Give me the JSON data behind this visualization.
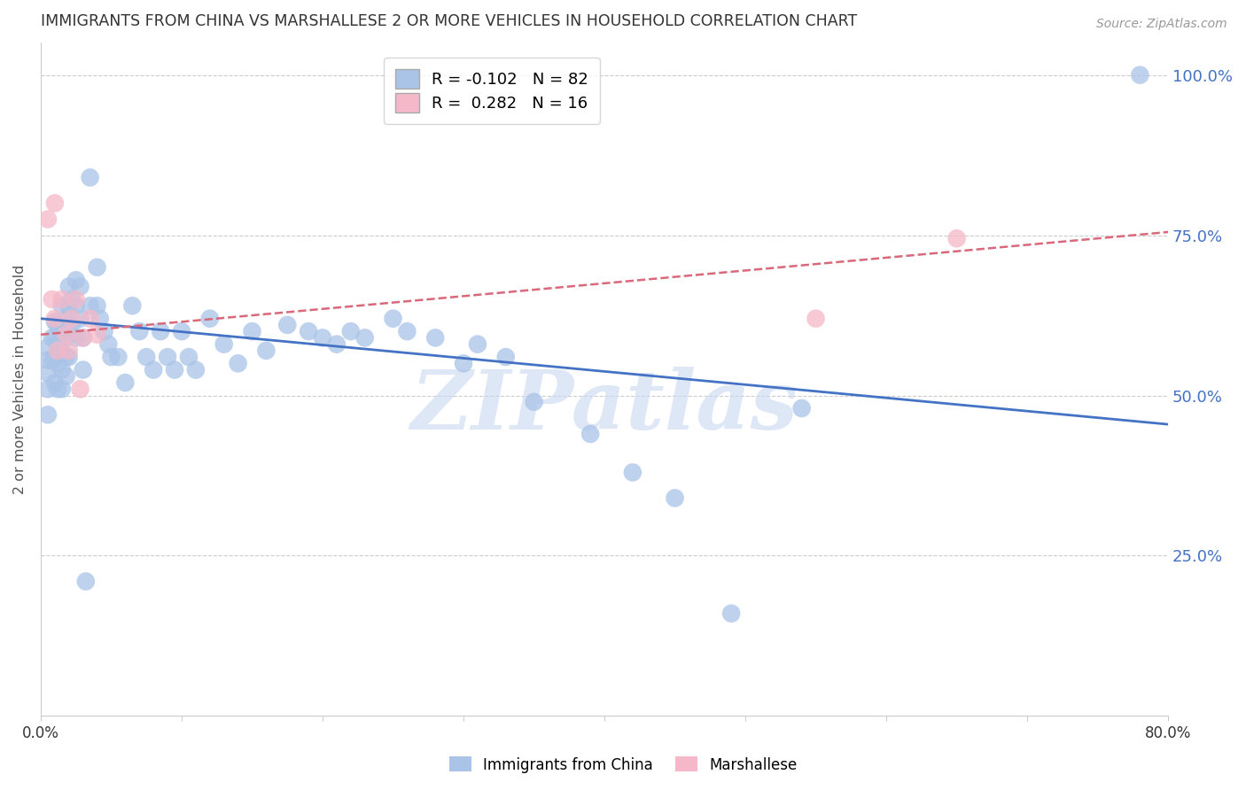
{
  "title": "IMMIGRANTS FROM CHINA VS MARSHALLESE 2 OR MORE VEHICLES IN HOUSEHOLD CORRELATION CHART",
  "source": "Source: ZipAtlas.com",
  "ylabel": "2 or more Vehicles in Household",
  "watermark": "ZIPatlas",
  "xlim": [
    0.0,
    0.8
  ],
  "ylim": [
    0.0,
    1.05
  ],
  "xticks": [
    0.0,
    0.1,
    0.2,
    0.3,
    0.4,
    0.5,
    0.6,
    0.7,
    0.8
  ],
  "xticklabels": [
    "0.0%",
    "",
    "",
    "",
    "",
    "",
    "",
    "",
    "80.0%"
  ],
  "yticks_right": [
    1.0,
    0.75,
    0.5,
    0.25
  ],
  "ytick_right_labels": [
    "100.0%",
    "75.0%",
    "50.0%",
    "25.0%"
  ],
  "china_color": "#aac4e8",
  "marsh_color": "#f4b8c8",
  "china_line_color": "#4472c4",
  "marsh_line_color": "#d9697a",
  "china_line_y0": 0.62,
  "china_line_y1": 0.455,
  "marsh_line_y0": 0.595,
  "marsh_line_y1": 0.755,
  "china_scatter_x": [
    0.005,
    0.005,
    0.005,
    0.005,
    0.005,
    0.008,
    0.008,
    0.01,
    0.01,
    0.01,
    0.01,
    0.012,
    0.012,
    0.012,
    0.012,
    0.015,
    0.015,
    0.015,
    0.015,
    0.015,
    0.018,
    0.018,
    0.018,
    0.018,
    0.02,
    0.02,
    0.02,
    0.02,
    0.022,
    0.022,
    0.025,
    0.025,
    0.025,
    0.028,
    0.028,
    0.03,
    0.03,
    0.032,
    0.035,
    0.035,
    0.04,
    0.04,
    0.042,
    0.045,
    0.048,
    0.05,
    0.055,
    0.06,
    0.065,
    0.07,
    0.075,
    0.08,
    0.085,
    0.09,
    0.095,
    0.1,
    0.105,
    0.11,
    0.12,
    0.13,
    0.14,
    0.15,
    0.16,
    0.175,
    0.19,
    0.2,
    0.21,
    0.22,
    0.23,
    0.25,
    0.26,
    0.28,
    0.3,
    0.31,
    0.33,
    0.35,
    0.39,
    0.42,
    0.45,
    0.49,
    0.54,
    0.78
  ],
  "china_scatter_y": [
    0.575,
    0.555,
    0.535,
    0.51,
    0.47,
    0.59,
    0.555,
    0.615,
    0.59,
    0.56,
    0.52,
    0.61,
    0.58,
    0.55,
    0.51,
    0.64,
    0.61,
    0.57,
    0.54,
    0.51,
    0.62,
    0.59,
    0.56,
    0.53,
    0.67,
    0.64,
    0.6,
    0.56,
    0.65,
    0.61,
    0.68,
    0.64,
    0.59,
    0.67,
    0.62,
    0.59,
    0.54,
    0.21,
    0.84,
    0.64,
    0.7,
    0.64,
    0.62,
    0.6,
    0.58,
    0.56,
    0.56,
    0.52,
    0.64,
    0.6,
    0.56,
    0.54,
    0.6,
    0.56,
    0.54,
    0.6,
    0.56,
    0.54,
    0.62,
    0.58,
    0.55,
    0.6,
    0.57,
    0.61,
    0.6,
    0.59,
    0.58,
    0.6,
    0.59,
    0.62,
    0.6,
    0.59,
    0.55,
    0.58,
    0.56,
    0.49,
    0.44,
    0.38,
    0.34,
    0.16,
    0.48,
    1.0
  ],
  "marsh_scatter_x": [
    0.005,
    0.008,
    0.01,
    0.01,
    0.012,
    0.015,
    0.018,
    0.02,
    0.022,
    0.025,
    0.028,
    0.03,
    0.035,
    0.04,
    0.55,
    0.65
  ],
  "marsh_scatter_y": [
    0.775,
    0.65,
    0.8,
    0.62,
    0.57,
    0.65,
    0.595,
    0.57,
    0.62,
    0.65,
    0.51,
    0.59,
    0.62,
    0.595,
    0.62,
    0.745
  ],
  "grid_color": "#cccccc",
  "background_color": "#ffffff",
  "title_color": "#333333",
  "axis_label_color": "#555555",
  "right_tick_color": "#4472c4",
  "watermark_color": "#c8d8f0"
}
